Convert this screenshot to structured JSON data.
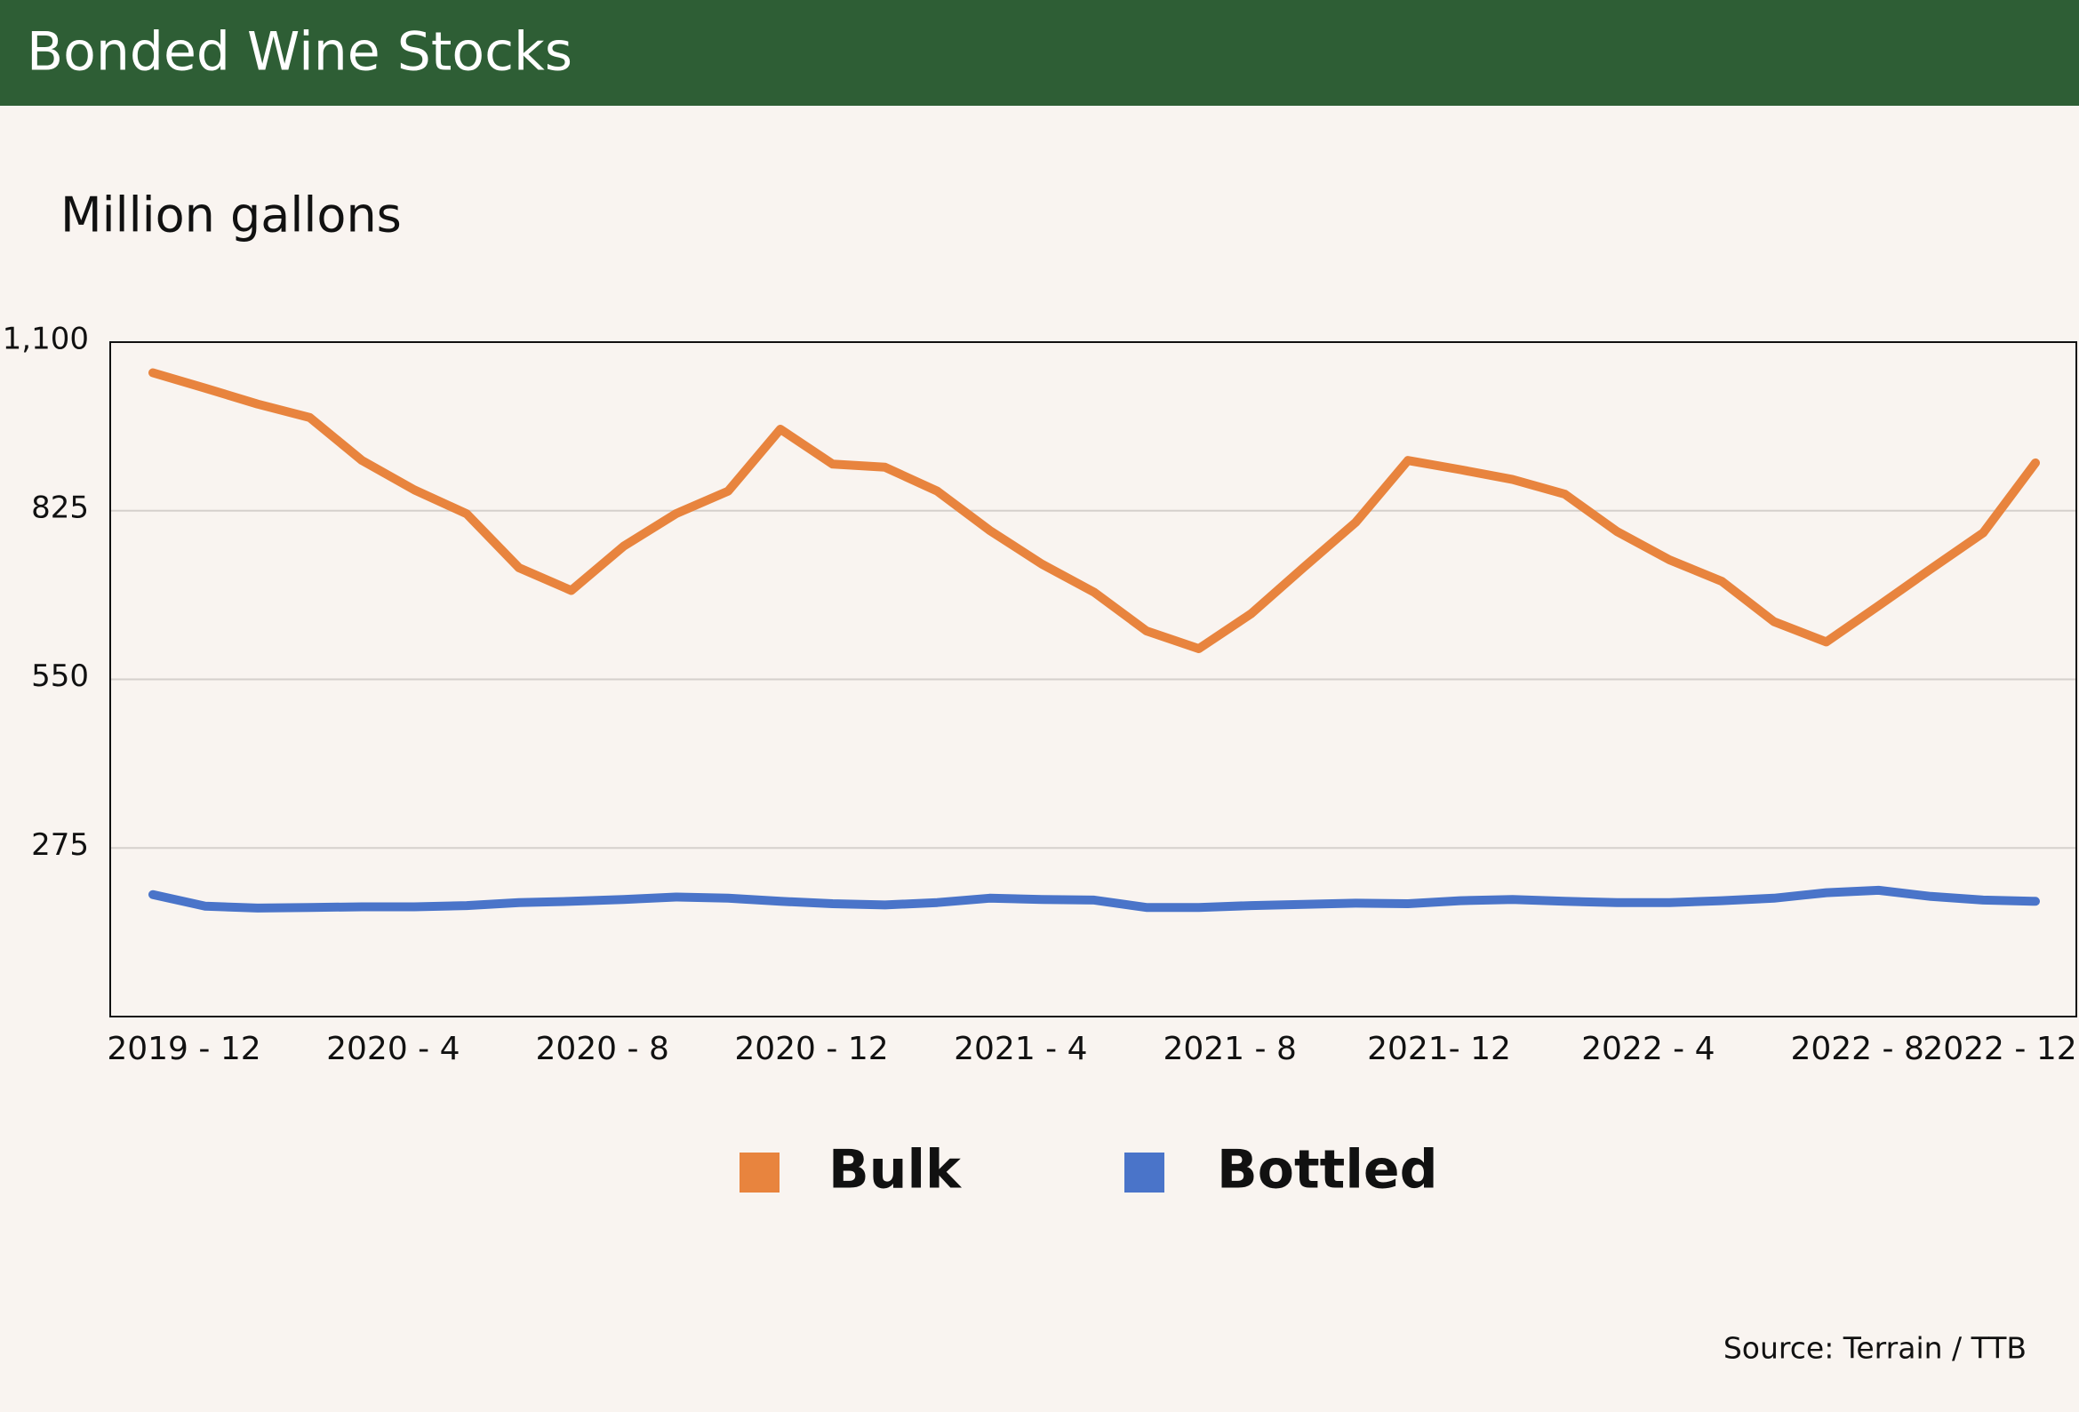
{
  "chart_data": {
    "type": "line",
    "title": "Bonded Wine Stocks",
    "y_axis_label": "Million gallons",
    "source": "Source: Terrain / TTB",
    "categories": [
      "2019 - 12",
      null,
      null,
      null,
      "2020 - 4",
      null,
      null,
      null,
      "2020 - 8",
      null,
      null,
      null,
      "2020 - 12",
      null,
      null,
      null,
      "2021 - 4",
      null,
      null,
      null,
      "2021 - 8",
      null,
      null,
      null,
      "2021- 12",
      null,
      null,
      null,
      "2022 - 4",
      null,
      null,
      null,
      "2022 - 8",
      null,
      null,
      null,
      "2022 - 12"
    ],
    "series": [
      {
        "name": "Bulk",
        "color": "#e8843e",
        "values": [
          1050,
          1025,
          999,
          977,
          907,
          859,
          820,
          732,
          695,
          767,
          820,
          857,
          958,
          901,
          896,
          857,
          793,
          738,
          692,
          629,
          600,
          657,
          732,
          806,
          907,
          892,
          876,
          852,
          791,
          745,
          710,
          644,
          611,
          670,
          730,
          789,
          903
        ]
      },
      {
        "name": "Bottled",
        "color": "#4a74c9",
        "values": [
          199,
          180,
          177,
          178,
          179,
          179,
          181,
          186,
          188,
          191,
          195,
          193,
          188,
          184,
          182,
          186,
          193,
          191,
          190,
          178,
          178,
          181,
          183,
          185,
          184,
          189,
          191,
          188,
          186,
          186,
          189,
          193,
          202,
          206,
          196,
          190,
          188
        ]
      }
    ],
    "ylim": [
      0,
      1100
    ],
    "yticks": [
      275,
      550,
      825,
      {
        "value": 1100,
        "label": "1,100"
      }
    ],
    "grid": true
  }
}
